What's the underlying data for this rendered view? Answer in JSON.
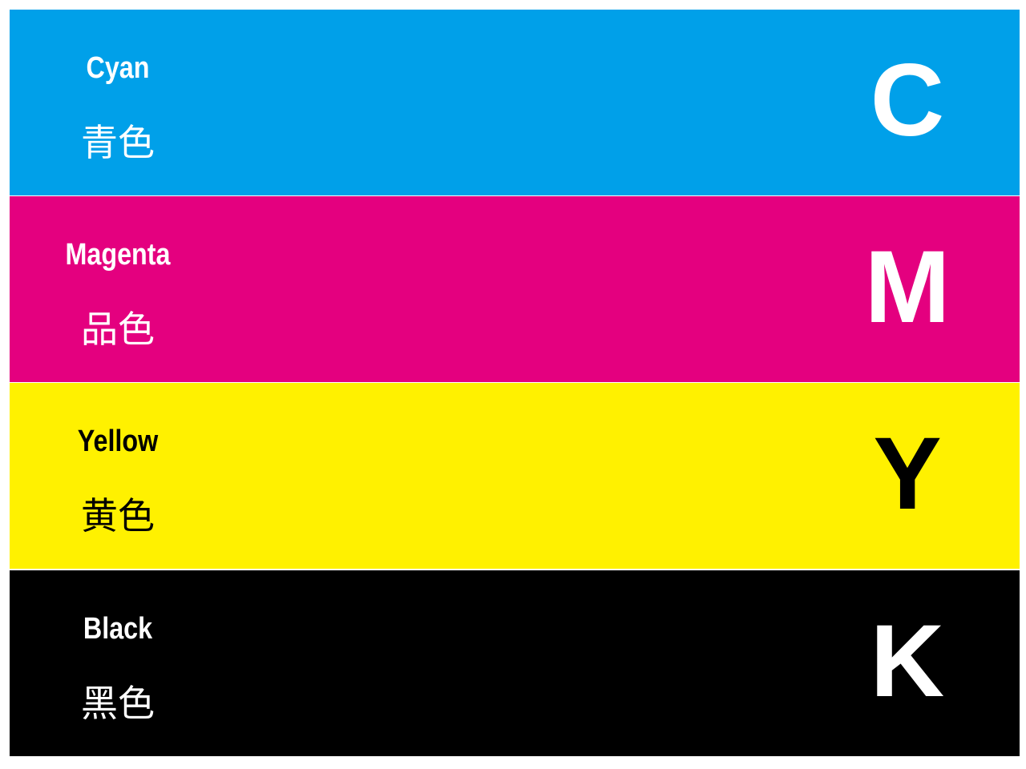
{
  "bands": [
    {
      "name": "Cyan",
      "name_cjk": "青色",
      "letter": "C"
    },
    {
      "name": "Magenta",
      "name_cjk": "品色",
      "letter": "M"
    },
    {
      "name": "Yellow",
      "name_cjk": "黄色",
      "letter": "Y"
    },
    {
      "name": "Black",
      "name_cjk": "黑色",
      "letter": "K"
    }
  ]
}
